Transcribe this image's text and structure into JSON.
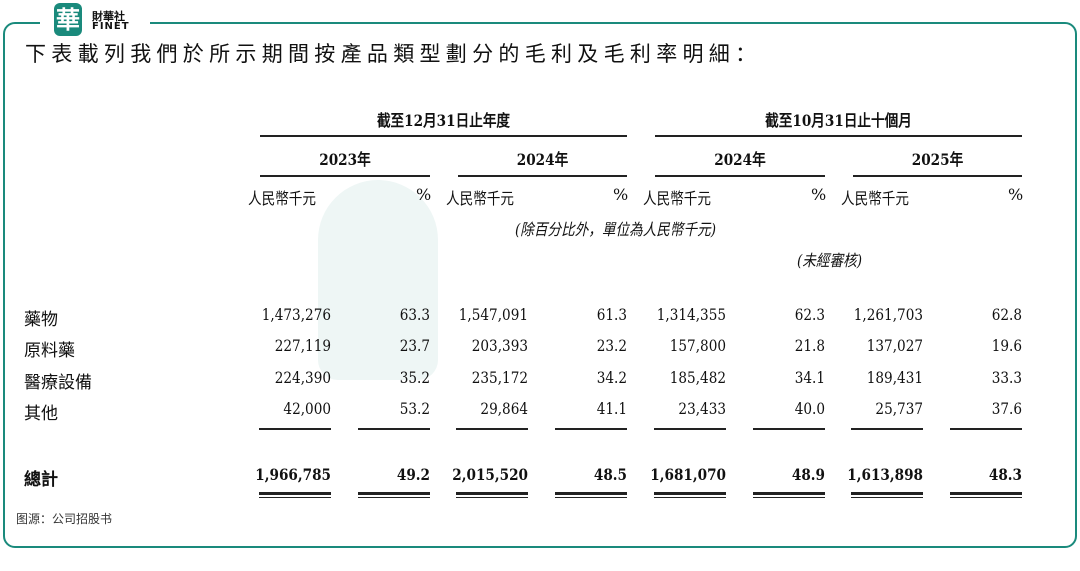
{
  "brand": {
    "logo_char": "華",
    "name_cn": "財華社",
    "name_en": "FINET",
    "accent": "#1a8a7c"
  },
  "title": "下表載列我們於所示期間按產品類型劃分的毛利及毛利率明細：",
  "table": {
    "groups": [
      "截至12月31日止年度",
      "截至10月31日止十個月"
    ],
    "years": [
      "2023年",
      "2024年",
      "2024年",
      "2025年"
    ],
    "unit_label": "人民幣千元",
    "pct_label": "%",
    "note": "(除百分比外，單位為人民幣千元)",
    "unaudited": "(未經審核)",
    "rows": [
      {
        "label": "藥物",
        "values": [
          "1,473,276",
          "63.3",
          "1,547,091",
          "61.3",
          "1,314,355",
          "62.3",
          "1,261,703",
          "62.8"
        ]
      },
      {
        "label": "原料藥",
        "values": [
          "227,119",
          "23.7",
          "203,393",
          "23.2",
          "157,800",
          "21.8",
          "137,027",
          "19.6"
        ]
      },
      {
        "label": "醫療設備",
        "values": [
          "224,390",
          "35.2",
          "235,172",
          "34.2",
          "185,482",
          "34.1",
          "189,431",
          "33.3"
        ]
      },
      {
        "label": "其他",
        "values": [
          "42,000",
          "53.2",
          "29,864",
          "41.1",
          "23,433",
          "40.0",
          "25,737",
          "37.6"
        ]
      }
    ],
    "total": {
      "label": "總計",
      "values": [
        "1,966,785",
        "49.2",
        "2,015,520",
        "48.5",
        "1,681,070",
        "48.9",
        "1,613,898",
        "48.3"
      ]
    }
  },
  "source": "图源：公司招股书"
}
